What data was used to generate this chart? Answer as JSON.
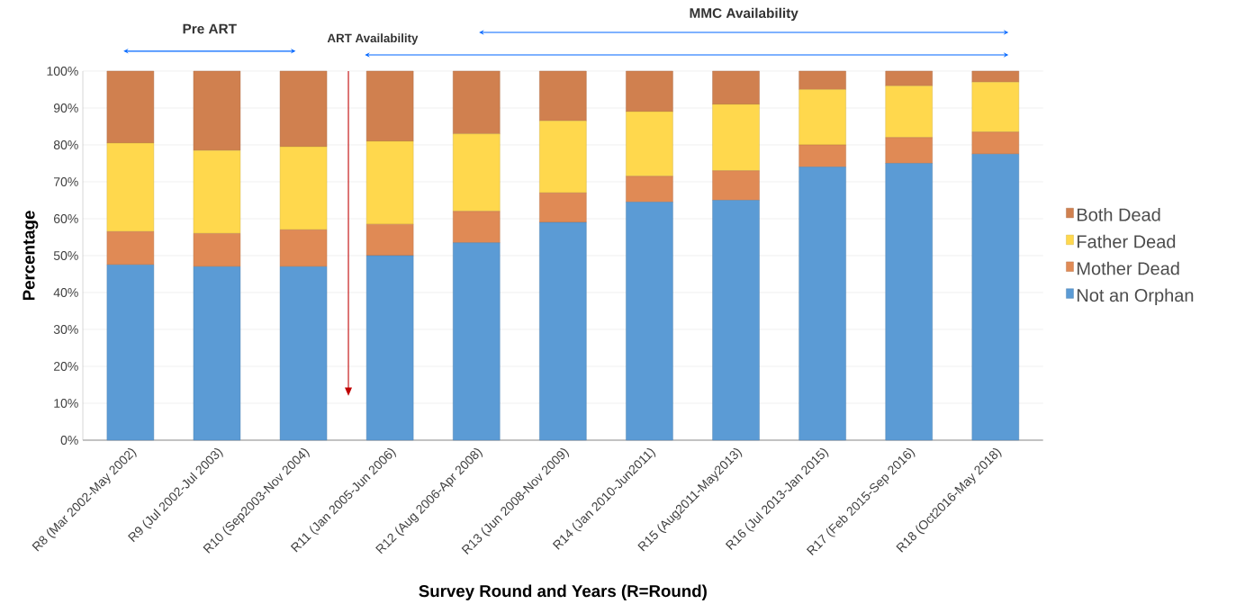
{
  "chart_data": {
    "type": "bar",
    "stacked": true,
    "xlabel": "Survey Round and Years   (R=Round)",
    "ylabel": "Percentage",
    "categories": [
      "R8 (Mar 2002-May 2002)",
      "R9 (Jul 2002-Jul 2003)",
      "R10 (Sep2003-Nov 2004)",
      "R11 (Jan 2005-Jun 2006)",
      "R12 (Aug 2006-Apr 2008)",
      "R13 (Jun 2008-Nov 2009)",
      "R14 (Jan 2010-Jun2011)",
      "R15 (Aug2011-May2013)",
      "R16 (Jul 2013-Jan 2015)",
      "R17 (Feb 2015-Sep 2016)",
      "R18 (Oct2016-May 2018)"
    ],
    "series": [
      {
        "name": "Not an Orphan",
        "color": "#5b9bd5",
        "values": [
          47.5,
          47,
          47,
          50,
          53.5,
          59,
          64.5,
          65,
          74,
          75,
          77.5
        ]
      },
      {
        "name": "Mother Dead",
        "color": "#e08a55",
        "values": [
          9,
          9,
          10,
          8.5,
          8.5,
          8,
          7,
          8,
          6,
          7,
          6
        ]
      },
      {
        "name": "Father Dead",
        "color": "#ffd84d",
        "values": [
          24,
          22.5,
          22.5,
          22.5,
          21,
          19.5,
          17.5,
          18,
          15,
          14,
          13.5
        ]
      },
      {
        "name": "Both Dead",
        "color": "#d0804f",
        "values": [
          19.5,
          21.5,
          20.5,
          19,
          17,
          13.5,
          11,
          9,
          5,
          4,
          3
        ]
      }
    ],
    "ylim": [
      0,
      100
    ],
    "yticks": [
      {
        "value": 0,
        "label": "0%"
      },
      {
        "value": 10,
        "label": "10%"
      },
      {
        "value": 20,
        "label": "20%"
      },
      {
        "value": 30,
        "label": "30%"
      },
      {
        "value": 40,
        "label": "40%"
      },
      {
        "value": 50,
        "label": "50%"
      },
      {
        "value": 60,
        "label": "60%"
      },
      {
        "value": 70,
        "label": "70%"
      },
      {
        "value": 80,
        "label": "80%"
      },
      {
        "value": 90,
        "label": "90%"
      },
      {
        "value": 100,
        "label": "100%"
      }
    ],
    "grid": "y",
    "legend": "right",
    "annotations": [
      "Pre ART",
      "ART Availability",
      "MMC Availability"
    ]
  }
}
